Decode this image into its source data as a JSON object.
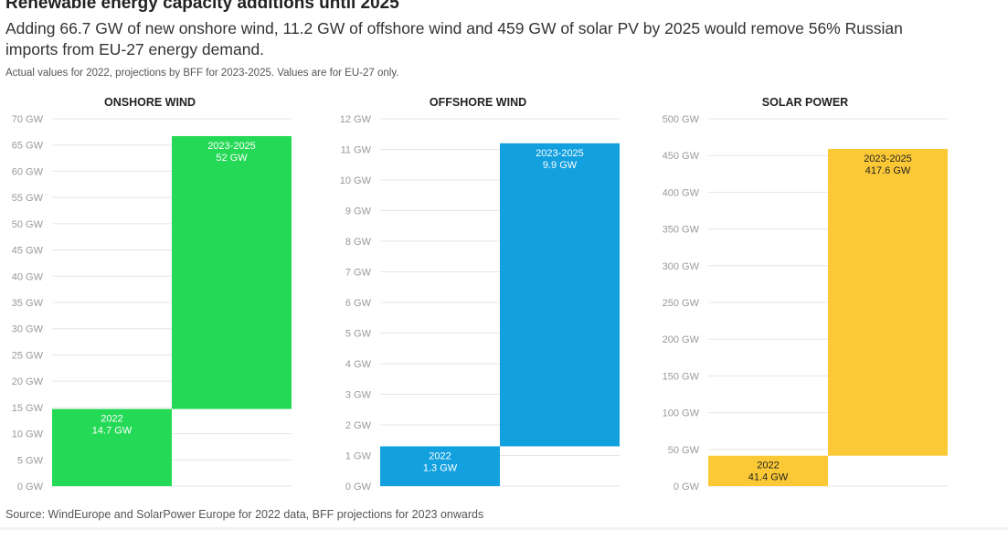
{
  "header": {
    "title": "Renewable energy capacity additions until 2025",
    "subtitle": "Adding 66.7 GW of new onshore wind, 11.2 GW of offshore wind and 459 GW of solar PV by 2025 would remove 56% Russian imports from EU-27 energy demand.",
    "note": "Actual values for 2022, projections by BFF for 2023-2025. Values are for EU-27 only."
  },
  "footer": {
    "source": "Source: WindEurope and SolarPower Europe for 2022 data, BFF projections for 2023 onwards"
  },
  "chart_data": [
    {
      "type": "bar",
      "subtype": "waterfall",
      "title": "ONSHORE WIND",
      "unit": "GW",
      "ylim": [
        0,
        70
      ],
      "yticks": [
        0,
        5,
        10,
        15,
        20,
        25,
        30,
        35,
        40,
        45,
        50,
        55,
        60,
        65,
        70
      ],
      "grid": true,
      "color": "#24d955",
      "label_color": "#ffffff",
      "categories": [
        "2022",
        "2023-2025"
      ],
      "values": [
        14.7,
        52
      ],
      "bases": [
        0,
        14.7
      ],
      "data_labels": [
        "14.7 GW",
        "52 GW"
      ]
    },
    {
      "type": "bar",
      "subtype": "waterfall",
      "title": "OFFSHORE WIND",
      "unit": "GW",
      "ylim": [
        0,
        12
      ],
      "yticks": [
        0,
        1,
        2,
        3,
        4,
        5,
        6,
        7,
        8,
        9,
        10,
        11,
        12
      ],
      "grid": true,
      "color": "#12a0df",
      "label_color": "#ffffff",
      "categories": [
        "2022",
        "2023-2025"
      ],
      "values": [
        1.3,
        9.9
      ],
      "bases": [
        0,
        1.3
      ],
      "data_labels": [
        "1.3 GW",
        "9.9 GW"
      ]
    },
    {
      "type": "bar",
      "subtype": "waterfall",
      "title": "SOLAR POWER",
      "unit": "GW",
      "ylim": [
        0,
        500
      ],
      "yticks": [
        0,
        50,
        100,
        150,
        200,
        250,
        300,
        350,
        400,
        450,
        500
      ],
      "grid": true,
      "color": "#fcc936",
      "label_color": "#222222",
      "categories": [
        "2022",
        "2023-2025"
      ],
      "values": [
        41.4,
        417.6
      ],
      "bases": [
        0,
        41.4
      ],
      "data_labels": [
        "41.4 GW",
        "417.6 GW"
      ]
    }
  ]
}
